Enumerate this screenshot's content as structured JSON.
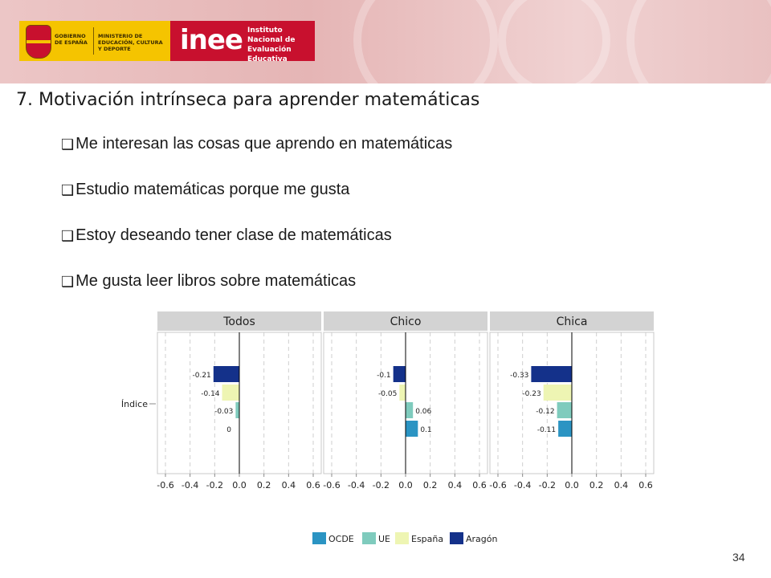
{
  "header": {
    "gov_text": "GOBIERNO DE ESPAÑA",
    "ministry_text": "MINISTERIO DE EDUCACIÓN, CULTURA Y DEPORTE",
    "inee_word": "inee",
    "inee_full": "Instituto Nacional de Evaluación Educativa"
  },
  "title": "7. Motivación intrínseca para aprender matemáticas",
  "bullets": [
    "Me interesan las cosas que aprendo en matemáticas",
    "Estudio matemáticas porque me gusta",
    "Estoy deseando tener clase de matemáticas",
    "Me gusta leer libros sobre matemáticas"
  ],
  "page_number": "34",
  "chart_data": {
    "type": "bar",
    "orientation": "horizontal",
    "category_label": "Índice",
    "xlim": [
      -0.6,
      0.6
    ],
    "xticks": [
      "-0.6",
      "-0.4",
      "-0.2",
      "0.0",
      "0.2",
      "0.4",
      "0.6"
    ],
    "grid": true,
    "legend_position": "bottom",
    "series": [
      {
        "name": "OCDE",
        "color": "#2b94c3"
      },
      {
        "name": "UE",
        "color": "#7fcbbd"
      },
      {
        "name": "España",
        "color": "#eef5b3"
      },
      {
        "name": "Aragón",
        "color": "#14318a"
      }
    ],
    "panels": [
      {
        "title": "Todos",
        "values": {
          "Aragón": -0.21,
          "España": -0.14,
          "UE": -0.03,
          "OCDE": 0
        },
        "labels": {
          "Aragón": "-0.21",
          "España": "-0.14",
          "UE": "-0.03",
          "OCDE": "0"
        }
      },
      {
        "title": "Chico",
        "values": {
          "Aragón": -0.1,
          "España": -0.05,
          "UE": 0.06,
          "OCDE": 0.1
        },
        "labels": {
          "Aragón": "-0.1",
          "España": "-0.05",
          "UE": "0.06",
          "OCDE": "0.1"
        }
      },
      {
        "title": "Chica",
        "values": {
          "Aragón": -0.33,
          "España": -0.23,
          "UE": -0.12,
          "OCDE": -0.11
        },
        "labels": {
          "Aragón": "-0.33",
          "España": "-0.23",
          "UE": "-0.12",
          "OCDE": "-0.11"
        }
      }
    ]
  }
}
